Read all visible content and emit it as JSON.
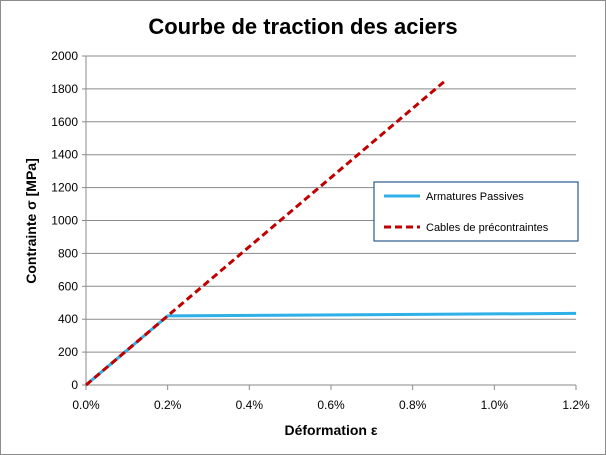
{
  "chart_data": {
    "type": "line",
    "title": "Courbe de traction des aciers",
    "xlabel": "Déformation ε",
    "ylabel": "Contrainte σ [MPa]",
    "xlim": [
      0,
      1.2
    ],
    "ylim": [
      0,
      2000
    ],
    "x_ticks": [
      0,
      0.2,
      0.4,
      0.6,
      0.8,
      1.0,
      1.2
    ],
    "x_tick_labels": [
      "0.0%",
      "0.2%",
      "0.4%",
      "0.6%",
      "0.8%",
      "1.0%",
      "1.2%"
    ],
    "y_ticks": [
      0,
      200,
      400,
      600,
      800,
      1000,
      1200,
      1400,
      1600,
      1800,
      2000
    ],
    "y_tick_labels": [
      "0",
      "200",
      "400",
      "600",
      "800",
      "1000",
      "1200",
      "1400",
      "1600",
      "1800",
      "2000"
    ],
    "grid": "horizontal",
    "legend_position": "right",
    "series": [
      {
        "name": "Armatures Passives",
        "color": "#2fb0e8",
        "dash": "solid",
        "x": [
          0,
          0.2,
          1.2
        ],
        "y": [
          0,
          420,
          435
        ]
      },
      {
        "name": "Cables de précontraintes",
        "color": "#c00000",
        "dash": "dashed",
        "x": [
          0,
          0.88
        ],
        "y": [
          0,
          1850
        ]
      }
    ]
  }
}
